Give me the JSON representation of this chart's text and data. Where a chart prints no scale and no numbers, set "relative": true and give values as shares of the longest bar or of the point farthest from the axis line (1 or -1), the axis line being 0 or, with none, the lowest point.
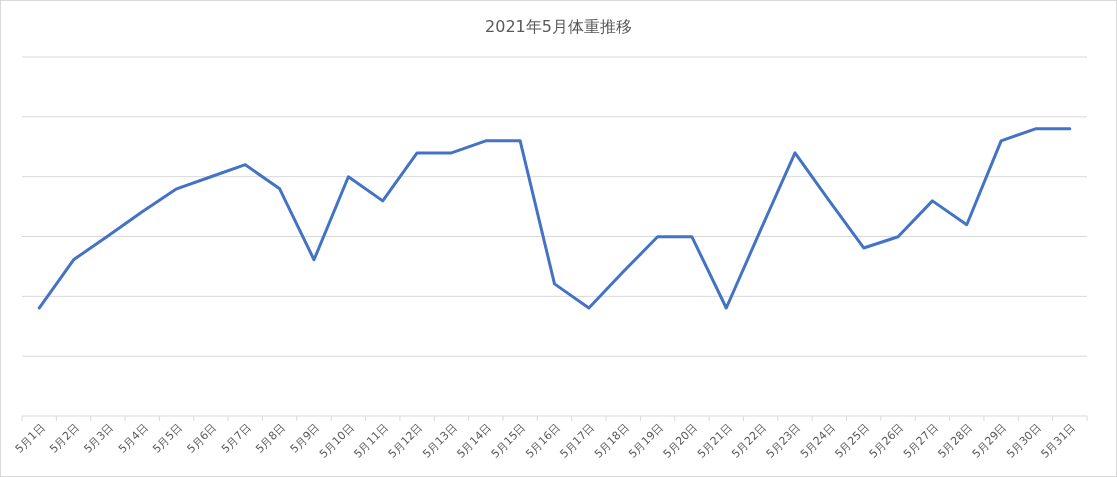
{
  "chart_data": {
    "type": "line",
    "title": "2021年5月体重推移",
    "categories": [
      "5月1日",
      "5月2日",
      "5月3日",
      "5月4日",
      "5月5日",
      "5月6日",
      "5月7日",
      "5月8日",
      "5月9日",
      "5月10日",
      "5月11日",
      "5月12日",
      "5月13日",
      "5月14日",
      "5月15日",
      "5月16日",
      "5月17日",
      "5月18日",
      "5月19日",
      "5月20日",
      "5月21日",
      "5月22日",
      "5月23日",
      "5月24日",
      "5月25日",
      "5月26日",
      "5月27日",
      "5月28日",
      "5月29日",
      "5月30日",
      "5月31日"
    ],
    "values": [
      0.376,
      0.544,
      0.627,
      0.711,
      0.791,
      0.833,
      0.875,
      0.791,
      0.544,
      0.833,
      0.749,
      0.916,
      0.916,
      0.958,
      0.958,
      0.46,
      0.376,
      0.502,
      0.624,
      0.624,
      0.376,
      0.648,
      0.916,
      0.749,
      0.585,
      0.624,
      0.749,
      0.666,
      0.958,
      1,
      1
    ],
    "color": "#4472c4",
    "relative": true,
    "grid": "y"
  }
}
